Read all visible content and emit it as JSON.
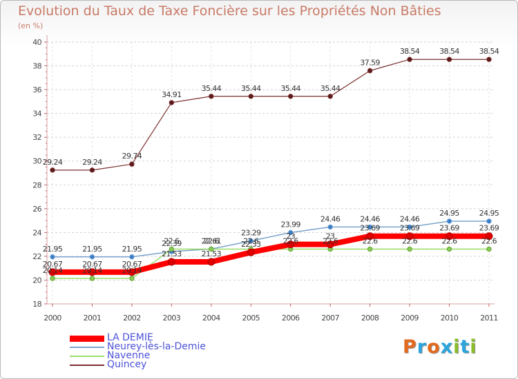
{
  "title": "Evolution du Taux de Taxe Foncière sur les Propriétés Non Bâties",
  "unit_label": "(en %)",
  "logo": {
    "text": "Proxiti",
    "colors": [
      "#e36a1d",
      "#2aa5dd",
      "#e36a1d",
      "#2aa5dd",
      "#8bbd2b",
      "#2aa5dd",
      "#8bbd2b"
    ]
  },
  "chart_data": {
    "type": "line",
    "x": [
      "2000",
      "2001",
      "2002",
      "2003",
      "2004",
      "2005",
      "2006",
      "2007",
      "2008",
      "2009",
      "2010",
      "2011"
    ],
    "ylim": [
      18,
      40
    ],
    "yticks": [
      "18",
      "20",
      "22",
      "24",
      "26",
      "28",
      "30",
      "32",
      "34",
      "36",
      "38",
      "40"
    ],
    "grid": "horizontal-dashed",
    "legend_position": "bottom-left",
    "series": [
      {
        "name": "LA DEMIE",
        "color": "#ff0000",
        "values": [
          20.67,
          20.67,
          20.67,
          21.53,
          21.53,
          22.33,
          23.0,
          23.0,
          23.69,
          23.69,
          23.69,
          23.69
        ],
        "labels": [
          "20.67",
          "20.67",
          "20.67",
          "21.53",
          "21.53",
          "22.33",
          "23",
          "23",
          "23.69",
          "23.69",
          "23.69",
          "23.69"
        ]
      },
      {
        "name": "Neurey-lès-la-Demie",
        "color": "#7ba3cc",
        "values": [
          21.95,
          21.95,
          21.95,
          22.39,
          22.61,
          23.29,
          23.99,
          24.46,
          24.46,
          24.46,
          24.95,
          24.95
        ],
        "labels": [
          "21.95",
          "21.95",
          "21.95",
          "22.39",
          "22.61",
          "23.29",
          "23.99",
          "24.46",
          "24.46",
          "24.46",
          "24.95",
          "24.95"
        ]
      },
      {
        "name": "Navenne",
        "color": "#99dd66",
        "values": [
          20.14,
          20.14,
          20.14,
          22.6,
          22.6,
          22.6,
          22.6,
          22.6,
          22.6,
          22.6,
          22.6,
          22.6
        ],
        "labels": [
          "20.14",
          "20.14",
          "20.14",
          "22.6",
          "22.6",
          "22.6",
          "22.6",
          "22.6",
          "22.6",
          "22.6",
          "22.6",
          "22.6"
        ]
      },
      {
        "name": "Quincey",
        "color": "#7a2e2e",
        "values": [
          29.24,
          29.24,
          29.74,
          34.91,
          35.44,
          35.44,
          35.44,
          35.44,
          37.59,
          38.54,
          38.54,
          38.54
        ],
        "labels": [
          "29.24",
          "29.24",
          "29.74",
          "34.91",
          "35.44",
          "35.44",
          "35.44",
          "35.44",
          "37.59",
          "38.54",
          "38.54",
          "38.54"
        ]
      }
    ]
  }
}
